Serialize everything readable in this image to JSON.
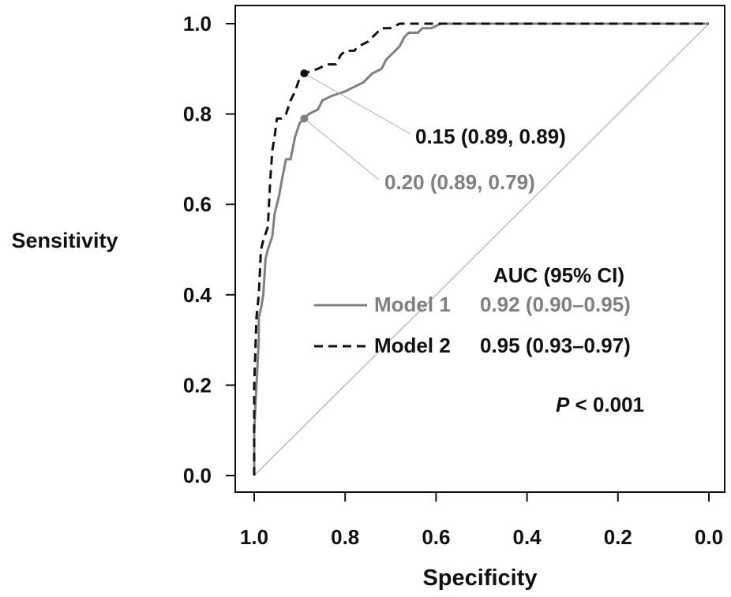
{
  "chart_data": {
    "type": "line",
    "xlabel": "Specificity",
    "ylabel": "Sensitivity",
    "xlim": [
      1.0,
      0.0
    ],
    "ylim": [
      0.0,
      1.0
    ],
    "x_reversed": true,
    "grid": false,
    "x_ticks": [
      "1.0",
      "0.8",
      "0.6",
      "0.4",
      "0.2",
      "0.0"
    ],
    "y_ticks": [
      "0.0",
      "0.2",
      "0.4",
      "0.6",
      "0.8",
      "1.0"
    ],
    "reference_line": {
      "style": "diagonal",
      "color": "#bbbbbb"
    },
    "series": [
      {
        "name": "Model 1",
        "color": "#808080",
        "dash": "solid",
        "auc_text": "0.92 (0.90–0.95)",
        "points": [
          [
            1.0,
            0.0
          ],
          [
            1.0,
            0.1
          ],
          [
            0.995,
            0.2
          ],
          [
            0.99,
            0.3
          ],
          [
            0.99,
            0.35
          ],
          [
            0.985,
            0.37
          ],
          [
            0.98,
            0.4
          ],
          [
            0.975,
            0.48
          ],
          [
            0.97,
            0.5
          ],
          [
            0.96,
            0.53
          ],
          [
            0.955,
            0.58
          ],
          [
            0.945,
            0.62
          ],
          [
            0.94,
            0.65
          ],
          [
            0.93,
            0.7
          ],
          [
            0.92,
            0.7
          ],
          [
            0.91,
            0.75
          ],
          [
            0.9,
            0.78
          ],
          [
            0.89,
            0.79
          ],
          [
            0.88,
            0.8
          ],
          [
            0.86,
            0.81
          ],
          [
            0.85,
            0.83
          ],
          [
            0.83,
            0.84
          ],
          [
            0.8,
            0.85
          ],
          [
            0.78,
            0.86
          ],
          [
            0.76,
            0.87
          ],
          [
            0.74,
            0.89
          ],
          [
            0.72,
            0.9
          ],
          [
            0.71,
            0.92
          ],
          [
            0.7,
            0.93
          ],
          [
            0.69,
            0.94
          ],
          [
            0.68,
            0.95
          ],
          [
            0.67,
            0.97
          ],
          [
            0.66,
            0.98
          ],
          [
            0.64,
            0.98
          ],
          [
            0.63,
            0.99
          ],
          [
            0.61,
            0.99
          ],
          [
            0.6,
            0.995
          ],
          [
            0.59,
            1.0
          ],
          [
            0.0,
            1.0
          ]
        ]
      },
      {
        "name": "Model 2",
        "color": "#111111",
        "dash": "dashed",
        "auc_text": "0.95 (0.93–0.97)",
        "points": [
          [
            1.0,
            0.0
          ],
          [
            1.0,
            0.2
          ],
          [
            0.995,
            0.35
          ],
          [
            0.99,
            0.4
          ],
          [
            0.985,
            0.5
          ],
          [
            0.98,
            0.52
          ],
          [
            0.97,
            0.55
          ],
          [
            0.965,
            0.65
          ],
          [
            0.96,
            0.72
          ],
          [
            0.955,
            0.75
          ],
          [
            0.95,
            0.79
          ],
          [
            0.94,
            0.79
          ],
          [
            0.93,
            0.8
          ],
          [
            0.92,
            0.83
          ],
          [
            0.91,
            0.85
          ],
          [
            0.9,
            0.88
          ],
          [
            0.89,
            0.89
          ],
          [
            0.86,
            0.9
          ],
          [
            0.84,
            0.91
          ],
          [
            0.82,
            0.91
          ],
          [
            0.81,
            0.93
          ],
          [
            0.8,
            0.94
          ],
          [
            0.78,
            0.94
          ],
          [
            0.77,
            0.95
          ],
          [
            0.75,
            0.96
          ],
          [
            0.74,
            0.97
          ],
          [
            0.73,
            0.98
          ],
          [
            0.72,
            0.99
          ],
          [
            0.7,
            0.99
          ],
          [
            0.68,
            1.0
          ],
          [
            0.0,
            1.0
          ]
        ]
      }
    ],
    "thresholds": [
      {
        "series": "Model 2",
        "specificity": 0.89,
        "sensitivity": 0.89,
        "label": "0.15 (0.89, 0.89)",
        "color": "#111111"
      },
      {
        "series": "Model 1",
        "specificity": 0.89,
        "sensitivity": 0.79,
        "label": "0.20 (0.89, 0.79)",
        "color": "#808080"
      }
    ],
    "legend": {
      "title": "AUC (95% CI)",
      "placement": "inside-lower-right"
    },
    "annotation": {
      "p_symbol": "P",
      "p_rest": " < 0.001"
    }
  }
}
